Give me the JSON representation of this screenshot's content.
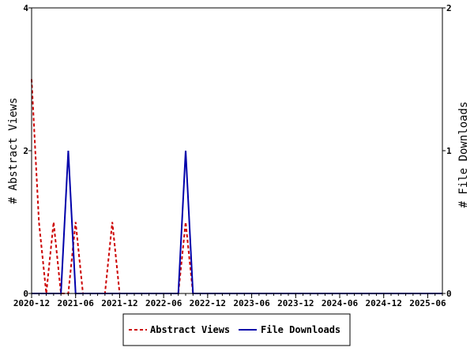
{
  "chart_data": {
    "type": "line",
    "title": "",
    "y_left_label": "# Abstract Views",
    "y_right_label": "# File Downloads",
    "y_left_range": [
      0,
      4
    ],
    "y_right_range": [
      0,
      2
    ],
    "y_left_ticks": [
      "0",
      "2",
      "4"
    ],
    "y_right_ticks": [
      "0",
      "1",
      "2"
    ],
    "x_tick_labels": [
      "2020-12",
      "2021-06",
      "2021-12",
      "2022-06",
      "2022-12",
      "2023-06",
      "2023-12",
      "2024-06",
      "2024-12",
      "2025-06"
    ],
    "x": [
      "2020-12",
      "2021-01",
      "2021-02",
      "2021-03",
      "2021-04",
      "2021-05",
      "2021-06",
      "2021-07",
      "2021-08",
      "2021-09",
      "2021-10",
      "2021-11",
      "2021-12",
      "2022-01",
      "2022-02",
      "2022-03",
      "2022-04",
      "2022-05",
      "2022-06",
      "2022-07",
      "2022-08",
      "2022-09",
      "2022-10",
      "2022-11",
      "2022-12",
      "2023-01",
      "2023-02",
      "2023-03",
      "2023-04",
      "2023-05",
      "2023-06",
      "2023-07",
      "2023-08",
      "2023-09",
      "2023-10",
      "2023-11",
      "2023-12",
      "2024-01",
      "2024-02",
      "2024-03",
      "2024-04",
      "2024-05",
      "2024-06",
      "2024-07",
      "2024-08",
      "2024-09",
      "2024-10",
      "2024-11",
      "2024-12",
      "2025-01",
      "2025-02",
      "2025-03",
      "2025-04",
      "2025-05",
      "2025-06",
      "2025-07",
      "2025-08"
    ],
    "series": [
      {
        "name": "Abstract Views",
        "axis": "left",
        "color": "#cc0000",
        "dash": true,
        "values": [
          3,
          1,
          0,
          1,
          0,
          0,
          1,
          0,
          0,
          0,
          0,
          1,
          0,
          0,
          0,
          0,
          0,
          0,
          0,
          0,
          0,
          1,
          0,
          0,
          0,
          0,
          0,
          0,
          0,
          0,
          0,
          0,
          0,
          0,
          0,
          0,
          0,
          0,
          0,
          0,
          0,
          0,
          0,
          0,
          0,
          0,
          0,
          0,
          0,
          0,
          0,
          0,
          0,
          0,
          0,
          0,
          0
        ]
      },
      {
        "name": "File Downloads",
        "axis": "right",
        "color": "#0000aa",
        "dash": false,
        "values": [
          0,
          0,
          0,
          0,
          0,
          1,
          0,
          0,
          0,
          0,
          0,
          0,
          0,
          0,
          0,
          0,
          0,
          0,
          0,
          0,
          0,
          1,
          0,
          0,
          0,
          0,
          0,
          0,
          0,
          0,
          0,
          0,
          0,
          0,
          0,
          0,
          0,
          0,
          0,
          0,
          0,
          0,
          0,
          0,
          0,
          0,
          0,
          0,
          0,
          0,
          0,
          0,
          0,
          0,
          0,
          0,
          0
        ]
      }
    ],
    "grid": false,
    "legend_position": "bottom"
  }
}
